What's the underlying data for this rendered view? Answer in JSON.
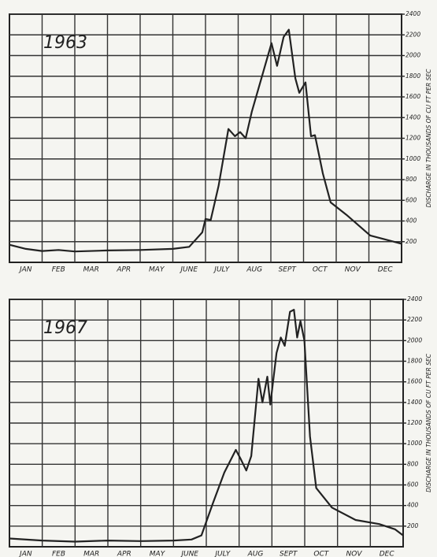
{
  "chart_data": [
    {
      "type": "line",
      "title": "1963",
      "y_label": "DISCHARGE IN THOUSANDS OF CU FT PER SEC",
      "categories": [
        "JAN",
        "FEB",
        "MAR",
        "APR",
        "MAY",
        "JUNE",
        "JULY",
        "AUG",
        "SEPT",
        "OCT",
        "NOV",
        "DEC"
      ],
      "xlim": [
        0,
        12
      ],
      "x": [
        0,
        0.5,
        1,
        1.5,
        2,
        3,
        4,
        5,
        5.5,
        5.9,
        6.0,
        6.16,
        6.4,
        6.7,
        6.9,
        7.06,
        7.23,
        7.42,
        7.71,
        8.02,
        8.19,
        8.39,
        8.55,
        8.75,
        8.87,
        9.06,
        9.23,
        9.35,
        9.59,
        9.83,
        10.31,
        11.04,
        12
      ],
      "values": [
        170,
        130,
        110,
        120,
        105,
        115,
        120,
        130,
        150,
        290,
        420,
        410,
        740,
        1290,
        1220,
        1260,
        1200,
        1460,
        1780,
        2120,
        1900,
        2180,
        2250,
        1780,
        1640,
        1740,
        1220,
        1230,
        860,
        580,
        460,
        260,
        180
      ],
      "color": "#222222",
      "ylim": [
        0,
        2400
      ],
      "yticks": [
        200,
        400,
        600,
        800,
        1000,
        1200,
        1400,
        1600,
        1800,
        2000,
        2200,
        2400
      ],
      "grid": true
    },
    {
      "type": "line",
      "title": "1967",
      "y_label": "DISCHARGE IN THOUSANDS OF CU FT PER SEC",
      "categories": [
        "JAN",
        "FEB",
        "MAR",
        "APR",
        "MAY",
        "JUNE",
        "JULY",
        "AUG",
        "SEPT",
        "OCT",
        "NOV",
        "DEC"
      ],
      "xlim": [
        0,
        12
      ],
      "x": [
        0,
        1,
        2,
        3,
        4,
        5,
        5.55,
        5.85,
        6.2,
        6.55,
        6.9,
        7.05,
        7.22,
        7.37,
        7.59,
        7.71,
        7.86,
        7.95,
        8.14,
        8.27,
        8.39,
        8.55,
        8.67,
        8.77,
        8.87,
        8.99,
        9.16,
        9.35,
        9.83,
        10.55,
        11.27,
        11.75,
        12
      ],
      "values": [
        80,
        60,
        50,
        60,
        55,
        60,
        70,
        110,
        420,
        720,
        940,
        850,
        740,
        880,
        1630,
        1400,
        1650,
        1380,
        1880,
        2030,
        1950,
        2280,
        2300,
        2030,
        2190,
        2000,
        1070,
        570,
        380,
        260,
        220,
        170,
        110
      ],
      "color": "#222222",
      "ylim": [
        0,
        2400
      ],
      "yticks": [
        200,
        400,
        600,
        800,
        1000,
        1200,
        1400,
        1600,
        1800,
        2000,
        2200,
        2400
      ],
      "grid": true
    }
  ]
}
